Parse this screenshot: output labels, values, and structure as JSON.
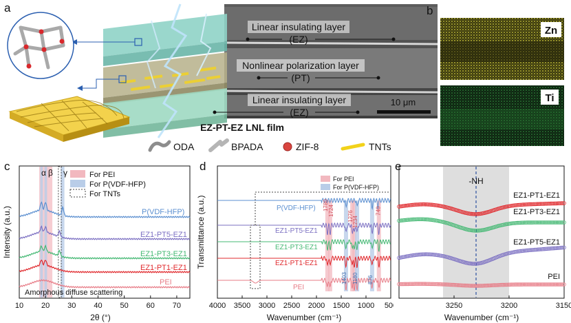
{
  "panel_letters": {
    "a": "a",
    "b": "b",
    "c": "c",
    "d": "d",
    "e": "e"
  },
  "panel_a": {
    "layers": [
      {
        "name": "Linear insulating layer",
        "abbr": "(EZ)"
      },
      {
        "name": "Nonlinear polarization layer",
        "abbr": "(PT)"
      },
      {
        "name": "Linear insulating layer",
        "abbr": "(EZ)"
      }
    ],
    "scale_bar": "10 μm",
    "film_title": "EZ-PT-EZ LNL film",
    "legend": [
      {
        "label": "ODA",
        "color": "#9a9a9a"
      },
      {
        "label": "BPADA",
        "color": "#b5b5b5"
      },
      {
        "label": "ZIF-8",
        "color": "#d9453f"
      },
      {
        "label": "TNTs",
        "color": "#f2d21a"
      }
    ]
  },
  "panel_b": {
    "maps": [
      {
        "element": "Zn",
        "color": "#c8c23a"
      },
      {
        "element": "Ti",
        "color": "#2f9a3b"
      }
    ]
  },
  "colors": {
    "pvdf": "#5b8fd0",
    "pt5": "#7b6fc2",
    "pt3": "#44b873",
    "pt1": "#e0282c",
    "pei": "#e77b86",
    "band_pei": "#f2b8bf",
    "band_pvdf": "#b9cde8"
  },
  "chart_data": [
    {
      "type": "line",
      "panel": "c",
      "xlabel": "2θ (°)",
      "ylabel": "Intensity (a.u.)",
      "xlim": [
        10,
        75
      ],
      "x_ticks": [
        "10",
        "20",
        "30",
        "40",
        "50",
        "60",
        "70"
      ],
      "legend": [
        "For PEI",
        "For P(VDF-HFP)",
        "For TNTs"
      ],
      "peak_labels": [
        "α",
        "β",
        "γ"
      ],
      "annotation": "Amorphous diffuse scattering",
      "series": [
        {
          "name": "P(VDF-HFP)",
          "peaks_2theta": [
            18.4,
            20.0,
            26.6
          ]
        },
        {
          "name": "EZ1-PT5-EZ1",
          "peaks_2theta": [
            18.4,
            20.0,
            25.3
          ]
        },
        {
          "name": "EZ1-PT3-EZ1",
          "peaks_2theta": [
            18.4,
            20.0,
            25.3
          ]
        },
        {
          "name": "EZ1-PT1-EZ1",
          "peaks_2theta": [
            18.4,
            20.0
          ]
        },
        {
          "name": "PEI",
          "peaks_2theta": []
        }
      ]
    },
    {
      "type": "line",
      "panel": "d",
      "xlabel": "Wavenumber (cm⁻¹)",
      "ylabel": "Transmittance (a.u.)",
      "xlim": [
        4000,
        500
      ],
      "x_ticks": [
        "4000",
        "3500",
        "3000",
        "2500",
        "2000",
        "1500",
        "1000",
        "500"
      ],
      "legend": [
        "For PEI",
        "For P(VDF-HFP)"
      ],
      "band_labels": [
        "1780",
        "1724",
        "1403",
        "1276",
        "1234",
        "1180",
        "876",
        "740"
      ],
      "series": [
        {
          "name": "P(VDF-HFP)"
        },
        {
          "name": "EZ1-PT5-EZ1"
        },
        {
          "name": "EZ1-PT3-EZ1"
        },
        {
          "name": "EZ1-PT1-EZ1"
        },
        {
          "name": "PEI"
        }
      ]
    },
    {
      "type": "line",
      "panel": "e",
      "xlabel": "Wavenumber (cm⁻¹)",
      "xlim": [
        3300,
        3150
      ],
      "x_ticks": [
        "3250",
        "3200",
        "3150"
      ],
      "annotation": "-NH",
      "nh_position": 3230,
      "series": [
        {
          "name": "EZ1-PT1-EZ1"
        },
        {
          "name": "EZ1-PT3-EZ1"
        },
        {
          "name": "EZ1-PT5-EZ1"
        },
        {
          "name": "PEI"
        }
      ]
    }
  ]
}
